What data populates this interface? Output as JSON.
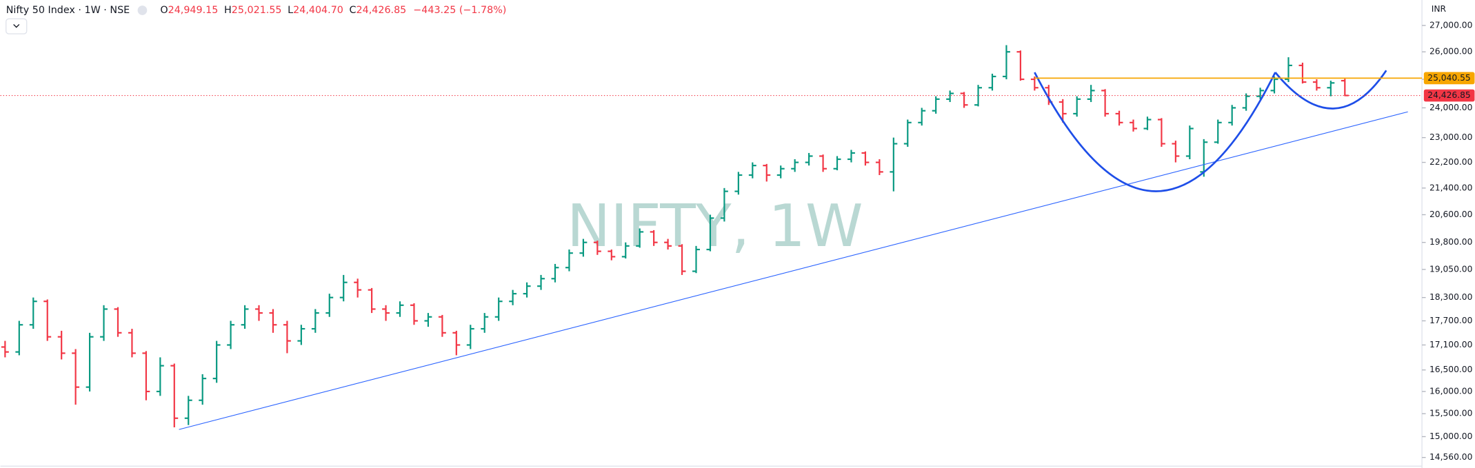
{
  "header": {
    "symbol": "Nifty 50 Index · 1W · NSE",
    "open_letter": "O",
    "open": "24,949.15",
    "high_letter": "H",
    "high": "25,021.55",
    "low_letter": "L",
    "low": "24,404.70",
    "close_letter": "C",
    "close": "24,426.85",
    "change": "−443.25 (−1.78%)"
  },
  "chart_data": {
    "type": "ohlc",
    "watermark": "NIFTY, 1W",
    "currency": "INR",
    "log_scale": true,
    "up_color": "#089981",
    "down_color": "#f23645",
    "ylim": [
      14400,
      28000
    ],
    "yticks": [
      {
        "value": 27000,
        "label": "27,000.00"
      },
      {
        "value": 26000,
        "label": "26,000.00"
      },
      {
        "value": 25000,
        "label": "25,000.00"
      },
      {
        "value": 24000,
        "label": "24,000.00"
      },
      {
        "value": 23000,
        "label": "23,000.00"
      },
      {
        "value": 22200,
        "label": "22,200.00"
      },
      {
        "value": 21400,
        "label": "21,400.00"
      },
      {
        "value": 20600,
        "label": "20,600.00"
      },
      {
        "value": 19800,
        "label": "19,800.00"
      },
      {
        "value": 19050,
        "label": "19,050.00"
      },
      {
        "value": 18300,
        "label": "18,300.00"
      },
      {
        "value": 17700,
        "label": "17,700.00"
      },
      {
        "value": 17100,
        "label": "17,100.00"
      },
      {
        "value": 16500,
        "label": "16,500.00"
      },
      {
        "value": 16000,
        "label": "16,000.00"
      },
      {
        "value": 15500,
        "label": "15,500.00"
      },
      {
        "value": 15000,
        "label": "15,000.00"
      },
      {
        "value": 14560,
        "label": "14,560.00"
      }
    ],
    "resistance_line": {
      "value": 25040.55,
      "label": "25,040.55",
      "color": "#f7a600"
    },
    "price_line": {
      "value": 24426.85,
      "label": "24,426.85",
      "color": "#f23645"
    },
    "open": [
      17050,
      16930,
      17600,
      18200,
      17300,
      16900,
      16100,
      17300,
      18000,
      17400,
      16900,
      16000,
      16600,
      15400,
      15800,
      16300,
      17100,
      17600,
      18000,
      17900,
      17600,
      17200,
      17500,
      17900,
      18300,
      18700,
      18500,
      18000,
      17900,
      18100,
      17700,
      17800,
      17400,
      17100,
      17500,
      17800,
      18200,
      18400,
      18600,
      18800,
      19100,
      19500,
      19800,
      19550,
      19400,
      19700,
      20100,
      19800,
      19700,
      19000,
      19600,
      20500,
      21300,
      21800,
      22100,
      21800,
      22000,
      22200,
      22400,
      22000,
      22300,
      22500,
      22200,
      21900,
      22800,
      23500,
      23900,
      24300,
      24500,
      24100,
      24700,
      25100,
      26000,
      25000,
      24700,
      24200,
      23800,
      24300,
      24600,
      23800,
      23500,
      23300,
      23600,
      22800,
      22400,
      21900,
      22850,
      23500,
      24000,
      24400,
      24600,
      25000,
      25500,
      24900,
      24700,
      24949.15
    ],
    "high": [
      17200,
      17700,
      18300,
      18250,
      17450,
      17000,
      17400,
      18100,
      18050,
      17500,
      16950,
      16800,
      16650,
      15900,
      16400,
      17200,
      17700,
      18100,
      18100,
      18000,
      17700,
      17600,
      18000,
      18400,
      18900,
      18800,
      18550,
      18100,
      18200,
      18150,
      17900,
      17850,
      17450,
      17600,
      17900,
      18300,
      18500,
      18700,
      18900,
      19200,
      19600,
      19900,
      19850,
      19600,
      19800,
      20200,
      20150,
      19900,
      19750,
      19700,
      20600,
      21400,
      21900,
      22200,
      22150,
      22100,
      22300,
      22500,
      22450,
      22400,
      22600,
      22550,
      22300,
      23000,
      23600,
      24000,
      24400,
      24600,
      24550,
      24800,
      25200,
      26250,
      26050,
      25100,
      24800,
      24300,
      24400,
      24800,
      24650,
      23900,
      23600,
      23700,
      23650,
      22900,
      23400,
      22950,
      23600,
      24100,
      24500,
      24700,
      25100,
      25800,
      25600,
      25000,
      24950,
      25021.55
    ],
    "low": [
      16800,
      16850,
      17500,
      17200,
      16750,
      15700,
      16000,
      17200,
      17300,
      16800,
      15800,
      15900,
      15200,
      15250,
      15700,
      16200,
      17000,
      17500,
      17700,
      17400,
      16900,
      17100,
      17400,
      17800,
      18200,
      18300,
      17900,
      17700,
      17800,
      17600,
      17550,
      17300,
      16850,
      17000,
      17400,
      17700,
      18100,
      18300,
      18500,
      18700,
      19000,
      19400,
      19450,
      19300,
      19350,
      19650,
      19700,
      19600,
      18900,
      18950,
      19550,
      20400,
      21200,
      21700,
      21600,
      21700,
      21900,
      22100,
      21900,
      21950,
      22200,
      22100,
      21800,
      21300,
      22700,
      23400,
      23800,
      24200,
      24000,
      24050,
      24600,
      25000,
      24950,
      24600,
      24100,
      23500,
      23700,
      24200,
      23700,
      23400,
      23200,
      23250,
      22700,
      22200,
      22300,
      21750,
      22800,
      23400,
      23900,
      24300,
      24500,
      24900,
      24850,
      24600,
      24400,
      24404.7
    ],
    "close": [
      16930,
      17600,
      18200,
      17300,
      16900,
      16100,
      17300,
      18000,
      17400,
      16900,
      16000,
      16600,
      15400,
      15800,
      16300,
      17100,
      17600,
      18000,
      17900,
      17600,
      17200,
      17500,
      17900,
      18300,
      18700,
      18500,
      18000,
      17900,
      18100,
      17700,
      17800,
      17400,
      17100,
      17500,
      17800,
      18200,
      18400,
      18600,
      18800,
      19100,
      19500,
      19800,
      19550,
      19400,
      19700,
      20100,
      19800,
      19700,
      19000,
      19600,
      20500,
      21300,
      21800,
      22100,
      21800,
      22000,
      22200,
      22400,
      22000,
      22300,
      22500,
      22200,
      21900,
      22800,
      23500,
      23900,
      24300,
      24500,
      24100,
      24700,
      25100,
      26000,
      25000,
      24700,
      24200,
      23800,
      24300,
      24600,
      23800,
      23500,
      23300,
      23600,
      22800,
      22400,
      23300,
      22850,
      23500,
      24000,
      24400,
      24600,
      25000,
      25500,
      24900,
      24700,
      24870.1,
      24426.85
    ]
  }
}
